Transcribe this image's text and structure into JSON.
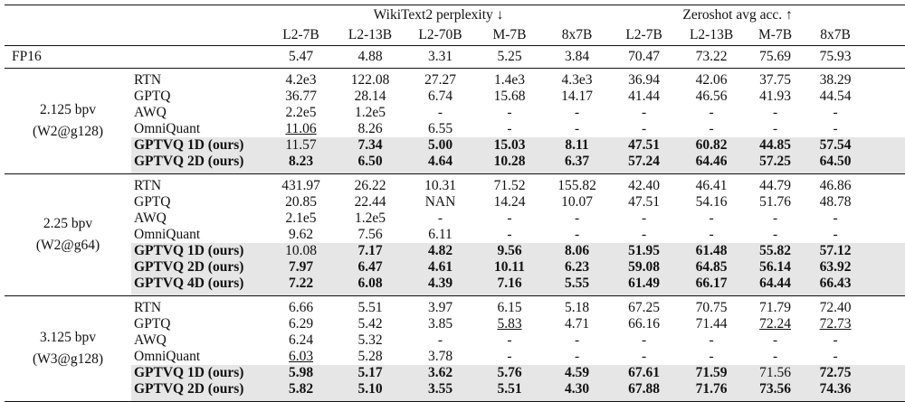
{
  "metrics": [
    {
      "label": "WikiText2 perplexity ↓",
      "models": [
        "L2-7B",
        "L2-13B",
        "L2-70B",
        "M-7B",
        "8x7B"
      ]
    },
    {
      "label": "Zeroshot avg acc. ↑",
      "models": [
        "L2-7B",
        "L2-13B",
        "M-7B",
        "8x7B"
      ]
    }
  ],
  "baseline": {
    "method": "FP16",
    "values": [
      "5.47",
      "4.88",
      "3.31",
      "5.25",
      "3.84",
      "70.47",
      "73.22",
      "75.69",
      "75.93"
    ]
  },
  "sections": [
    {
      "bpv": "2.125 bpv",
      "setting": "(W2@g128)",
      "rows": [
        {
          "method": "RTN",
          "values": [
            "4.2e3",
            "122.08",
            "27.27",
            "1.4e3",
            "4.3e3",
            "36.94",
            "42.06",
            "37.75",
            "38.29"
          ]
        },
        {
          "method": "GPTQ",
          "values": [
            "36.77",
            "28.14",
            "6.74",
            "15.68",
            "14.17",
            "41.44",
            "46.56",
            "41.93",
            "44.54"
          ]
        },
        {
          "method": "AWQ",
          "values": [
            "2.2e5",
            "1.2e5",
            "-",
            "-",
            "-",
            "-",
            "-",
            "-",
            "-"
          ]
        },
        {
          "method": "OmniQuant",
          "values": [
            "11.06",
            "8.26",
            "6.55",
            "-",
            "-",
            "-",
            "-",
            "-",
            "-"
          ],
          "underline": [
            0
          ]
        },
        {
          "method": "GPTVQ 1D (ours)",
          "values": [
            "11.57",
            "7.34",
            "5.00",
            "15.03",
            "8.11",
            "47.51",
            "60.82",
            "44.85",
            "57.54"
          ],
          "highlight": true,
          "bold": [
            1,
            2,
            3,
            4,
            5,
            6,
            7,
            8
          ]
        },
        {
          "method": "GPTVQ 2D (ours)",
          "values": [
            "8.23",
            "6.50",
            "4.64",
            "10.28",
            "6.37",
            "57.24",
            "64.46",
            "57.25",
            "64.50"
          ],
          "highlight": true,
          "bold": [
            0,
            1,
            2,
            3,
            4,
            5,
            6,
            7,
            8
          ]
        }
      ]
    },
    {
      "bpv": "2.25 bpv",
      "setting": "(W2@g64)",
      "rows": [
        {
          "method": "RTN",
          "values": [
            "431.97",
            "26.22",
            "10.31",
            "71.52",
            "155.82",
            "42.40",
            "46.41",
            "44.79",
            "46.86"
          ]
        },
        {
          "method": "GPTQ",
          "values": [
            "20.85",
            "22.44",
            "NAN",
            "14.24",
            "10.07",
            "47.51",
            "54.16",
            "51.76",
            "48.78"
          ]
        },
        {
          "method": "AWQ",
          "values": [
            "2.1e5",
            "1.2e5",
            "-",
            "-",
            "-",
            "-",
            "-",
            "-",
            "-"
          ]
        },
        {
          "method": "OmniQuant",
          "values": [
            "9.62",
            "7.56",
            "6.11",
            "-",
            "-",
            "-",
            "-",
            "-",
            "-"
          ]
        },
        {
          "method": "GPTVQ 1D (ours)",
          "values": [
            "10.08",
            "7.17",
            "4.82",
            "9.56",
            "8.06",
            "51.95",
            "61.48",
            "55.82",
            "57.12"
          ],
          "highlight": true,
          "bold": [
            1,
            2,
            3,
            4,
            5,
            6,
            7,
            8
          ]
        },
        {
          "method": "GPTVQ 2D (ours)",
          "values": [
            "7.97",
            "6.47",
            "4.61",
            "10.11",
            "6.23",
            "59.08",
            "64.85",
            "56.14",
            "63.92"
          ],
          "highlight": true,
          "bold": [
            0,
            1,
            2,
            3,
            4,
            5,
            6,
            7,
            8
          ]
        },
        {
          "method": "GPTVQ 4D (ours)",
          "values": [
            "7.22",
            "6.08",
            "4.39",
            "7.16",
            "5.55",
            "61.49",
            "66.17",
            "64.44",
            "66.43"
          ],
          "highlight": true,
          "bold": [
            0,
            1,
            2,
            3,
            4,
            5,
            6,
            7,
            8
          ]
        }
      ]
    },
    {
      "bpv": "3.125 bpv",
      "setting": "(W3@g128)",
      "rows": [
        {
          "method": "RTN",
          "values": [
            "6.66",
            "5.51",
            "3.97",
            "6.15",
            "5.18",
            "67.25",
            "70.75",
            "71.79",
            "72.40"
          ]
        },
        {
          "method": "GPTQ",
          "values": [
            "6.29",
            "5.42",
            "3.85",
            "5.83",
            "4.71",
            "66.16",
            "71.44",
            "72.24",
            "72.73"
          ],
          "underline": [
            3,
            7,
            8
          ]
        },
        {
          "method": "AWQ",
          "values": [
            "6.24",
            "5.32",
            "-",
            "-",
            "-",
            "-",
            "-",
            "-",
            "-"
          ]
        },
        {
          "method": "OmniQuant",
          "values": [
            "6.03",
            "5.28",
            "3.78",
            "-",
            "-",
            "-",
            "-",
            "-",
            "-"
          ],
          "underline": [
            0
          ]
        },
        {
          "method": "GPTVQ 1D (ours)",
          "values": [
            "5.98",
            "5.17",
            "3.62",
            "5.76",
            "4.59",
            "67.61",
            "71.59",
            "71.56",
            "72.75"
          ],
          "highlight": true,
          "bold": [
            0,
            1,
            2,
            3,
            4,
            5,
            6,
            8
          ]
        },
        {
          "method": "GPTVQ 2D (ours)",
          "values": [
            "5.82",
            "5.10",
            "3.55",
            "5.51",
            "4.30",
            "67.88",
            "71.76",
            "73.56",
            "74.36"
          ],
          "highlight": true,
          "bold": [
            0,
            1,
            2,
            3,
            4,
            5,
            6,
            7,
            8
          ]
        }
      ]
    }
  ]
}
